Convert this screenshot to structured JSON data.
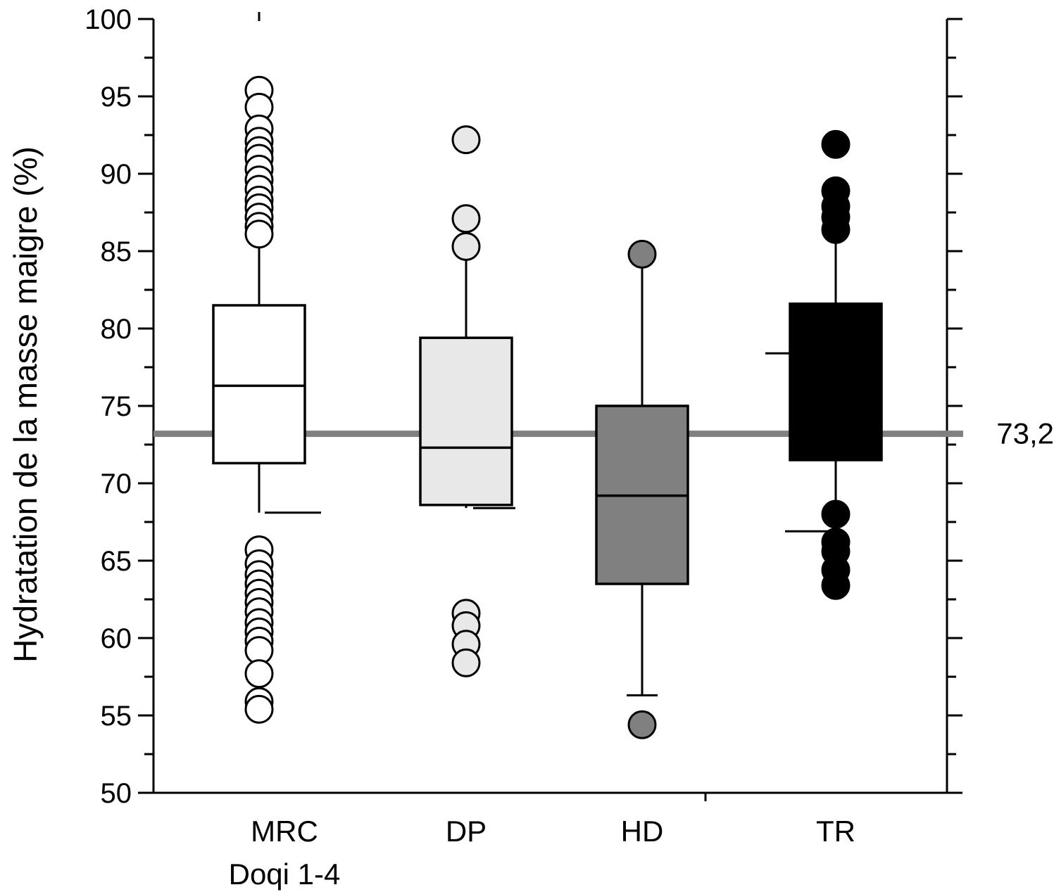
{
  "chart_data": {
    "type": "box",
    "title": "",
    "xlabel": "",
    "ylabel": "Hydratation de la masse maigre (%)",
    "ylim": [
      50,
      100
    ],
    "yticks": [
      "50",
      "55",
      "60",
      "65",
      "70",
      "75",
      "80",
      "85",
      "90",
      "95",
      "100"
    ],
    "reference_line": {
      "value": 73.2,
      "label": "73,2",
      "color": "#808080"
    },
    "groups": [
      {
        "category": "MRC",
        "category_line2": "Doqi 1-4",
        "fill": "#ffffff",
        "q1": 71.3,
        "median": 76.3,
        "q3": 81.5,
        "whisker_low": 68.1,
        "whisker_high": 85.6,
        "outliers": [
          95.4,
          94.3,
          92.9,
          92.1,
          91.5,
          91.0,
          90.3,
          89.6,
          89.0,
          88.3,
          87.8,
          87.2,
          86.6,
          86.1,
          65.7,
          64.8,
          64.1,
          63.5,
          62.9,
          62.3,
          61.7,
          61.0,
          60.4,
          59.8,
          59.2,
          57.7,
          55.9,
          55.4
        ]
      },
      {
        "category": "DP",
        "category_line2": "",
        "fill": "#e8e8e8",
        "q1": 68.6,
        "median": 72.3,
        "q3": 79.4,
        "whisker_low": 68.4,
        "whisker_high": 84.4,
        "outliers": [
          92.2,
          87.1,
          85.3,
          61.6,
          60.8,
          59.6,
          58.4
        ]
      },
      {
        "category": "HD",
        "category_line2": "",
        "fill": "#808080",
        "q1": 63.5,
        "median": 69.2,
        "q3": 75.0,
        "whisker_low": 56.3,
        "whisker_high": 83.9,
        "outliers": [
          84.8,
          54.4
        ]
      },
      {
        "category": "TR",
        "category_line2": "",
        "fill": "#000000",
        "q1": 71.5,
        "median": 78.4,
        "q3": 81.6,
        "whisker_low": 66.9,
        "whisker_high": 85.9,
        "outliers": [
          91.9,
          88.9,
          87.9,
          87.2,
          86.4,
          68.0,
          66.2,
          65.6,
          64.4,
          63.4
        ]
      }
    ]
  }
}
